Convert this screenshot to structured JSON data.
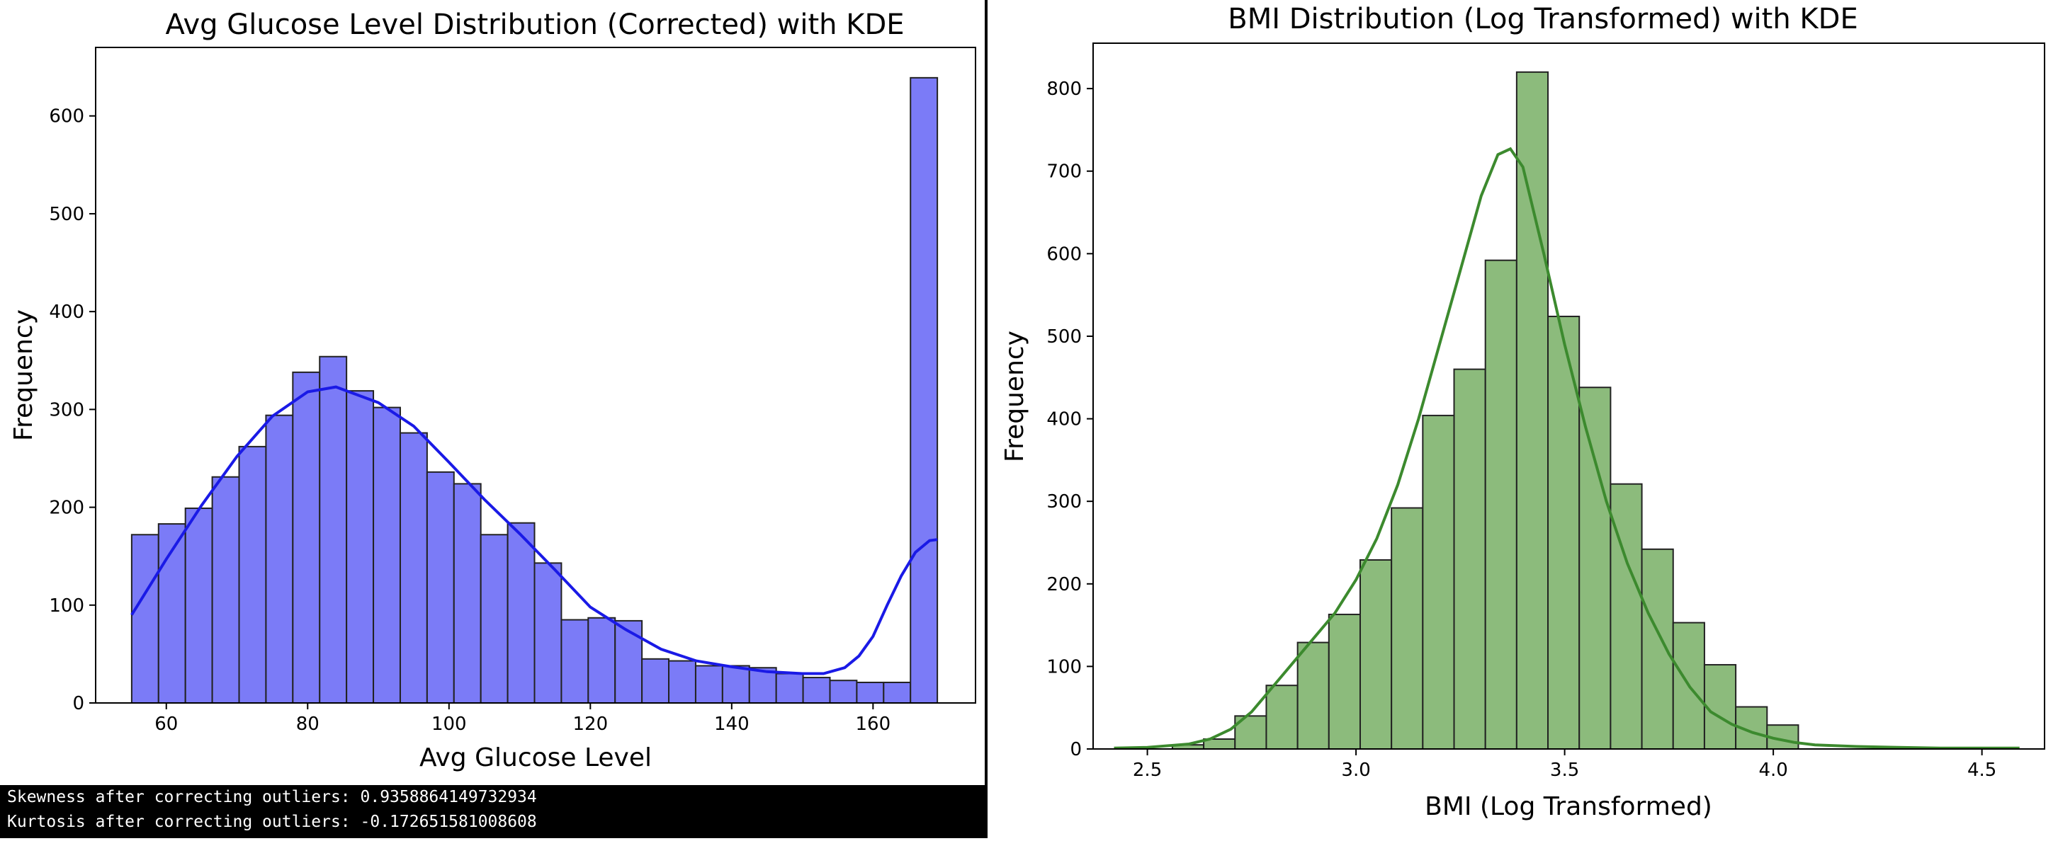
{
  "colors": {
    "glucose_fill": "#7b7bf7",
    "glucose_kde": "#1a1ae6",
    "bmi_fill": "#8cbb7c",
    "bmi_kde": "#3c8a2e",
    "edge": "#222222"
  },
  "console": {
    "line1": "Skewness after correcting outliers: 0.9358864149732934",
    "line2": "Kurtosis after correcting outliers: -0.172651581008608"
  },
  "chart_data": [
    {
      "type": "bar",
      "title": "Avg Glucose Level Distribution (Corrected) with KDE",
      "xlabel": "Avg Glucose Level",
      "ylabel": "Frequency",
      "xlim": [
        50,
        174.5
      ],
      "ylim": [
        0,
        670
      ],
      "xticks": [
        60,
        80,
        100,
        120,
        140,
        160
      ],
      "yticks": [
        0,
        100,
        200,
        300,
        400,
        500,
        600
      ],
      "bin_edges": [
        55.1,
        58.9,
        62.7,
        66.5,
        70.3,
        74.1,
        77.9,
        81.7,
        85.5,
        89.3,
        93.1,
        96.9,
        100.7,
        104.5,
        108.3,
        112.1,
        115.9,
        119.7,
        123.5,
        127.3,
        131.1,
        134.9,
        138.7,
        142.5,
        146.3,
        150.1,
        153.9,
        157.7,
        161.5,
        165.3,
        169.1
      ],
      "counts": [
        172,
        183,
        199,
        231,
        262,
        294,
        338,
        354,
        319,
        302,
        276,
        236,
        224,
        172,
        184,
        143,
        85,
        87,
        84,
        45,
        43,
        38,
        38,
        36,
        30,
        26,
        23,
        21,
        21,
        639
      ],
      "kde": {
        "x": [
          55.1,
          60,
          65,
          70,
          75,
          80,
          84,
          90,
          95,
          100,
          105,
          110,
          115,
          120,
          125,
          130,
          135,
          140,
          145,
          150,
          153,
          156,
          158,
          160,
          162,
          164,
          166,
          168,
          169.1
        ],
        "y": [
          90,
          147,
          202,
          252,
          293,
          318,
          323,
          307,
          283,
          246,
          208,
          173,
          136,
          98,
          75,
          55,
          43,
          37,
          32,
          30,
          30,
          36,
          48,
          68,
          100,
          130,
          154,
          166,
          167
        ]
      }
    },
    {
      "type": "bar",
      "title": "BMI Distribution (Log Transformed) with KDE",
      "xlabel": "BMI (Log Transformed)",
      "ylabel": "Frequency",
      "xlim": [
        2.37,
        4.65
      ],
      "ylim": [
        0,
        855
      ],
      "xticks": [
        2.5,
        3.0,
        3.5,
        4.0,
        4.5
      ],
      "yticks": [
        0,
        100,
        200,
        300,
        400,
        500,
        600,
        700,
        800
      ],
      "bin_edges": [
        2.56,
        2.635,
        2.71,
        2.785,
        2.86,
        2.935,
        3.01,
        3.085,
        3.16,
        3.235,
        3.31,
        3.385,
        3.46,
        3.535,
        3.61,
        3.685,
        3.76,
        3.835,
        3.91,
        3.985,
        4.06
      ],
      "counts": [
        5,
        12,
        40,
        77,
        129,
        163,
        229,
        292,
        404,
        460,
        592,
        820,
        524,
        438,
        321,
        242,
        153,
        102,
        51,
        29
      ],
      "kde": {
        "x": [
          2.42,
          2.5,
          2.6,
          2.65,
          2.7,
          2.75,
          2.8,
          2.85,
          2.9,
          2.95,
          3.0,
          3.05,
          3.1,
          3.15,
          3.2,
          3.25,
          3.3,
          3.34,
          3.37,
          3.4,
          3.45,
          3.5,
          3.55,
          3.6,
          3.65,
          3.7,
          3.75,
          3.8,
          3.85,
          3.9,
          3.95,
          4.0,
          4.05,
          4.1,
          4.2,
          4.3,
          4.4,
          4.5,
          4.59
        ],
        "y": [
          1,
          2,
          6,
          12,
          24,
          45,
          75,
          105,
          135,
          165,
          205,
          255,
          320,
          400,
          490,
          580,
          670,
          720,
          727,
          705,
          600,
          490,
          390,
          300,
          225,
          165,
          115,
          75,
          45,
          30,
          20,
          13,
          8,
          5,
          3,
          2,
          1,
          1,
          1
        ]
      }
    }
  ]
}
